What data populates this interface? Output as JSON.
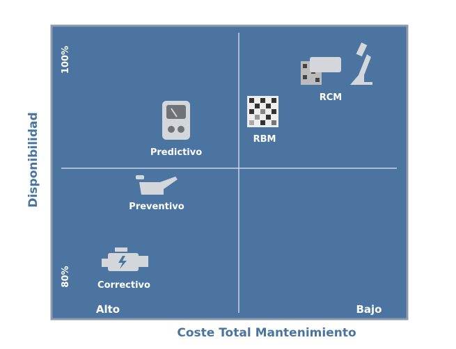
{
  "axes": {
    "y_label": "Disponibilidad",
    "x_label": "Coste Total Mantenimiento",
    "y_top": "100%",
    "y_bottom": "80%",
    "x_left": "Alto",
    "x_right": "Bajo"
  },
  "nodes": [
    {
      "label": "Predictivo"
    },
    {
      "label": "RBM"
    },
    {
      "label": "RCM"
    },
    {
      "label": "Preventivo"
    },
    {
      "label": "Correctivo"
    }
  ]
}
